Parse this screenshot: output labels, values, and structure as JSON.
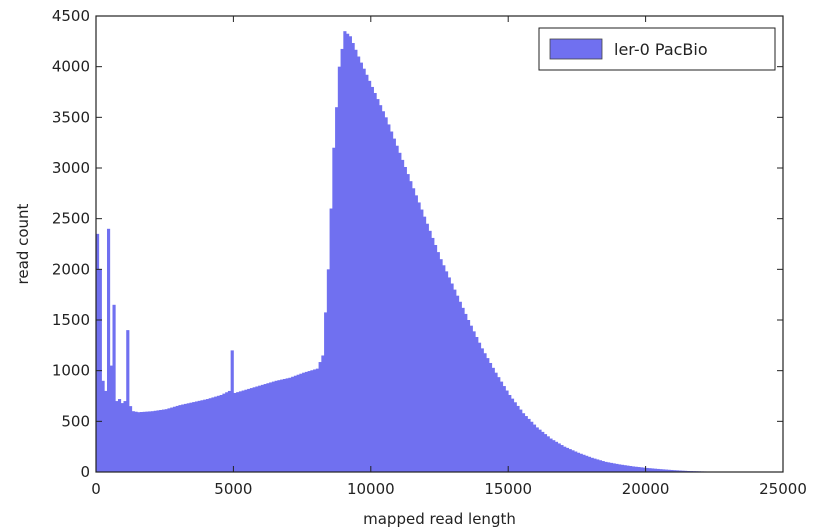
{
  "chart_data": {
    "type": "histogram",
    "title": "",
    "xlabel": "mapped read length",
    "ylabel": "read count",
    "xlim": [
      0,
      25000
    ],
    "ylim": [
      0,
      4500
    ],
    "xticks": [
      "0",
      "5000",
      "10000",
      "15000",
      "20000",
      "25000"
    ],
    "yticks": [
      "0",
      "500",
      "1000",
      "1500",
      "2000",
      "2500",
      "3000",
      "3500",
      "4000",
      "4500"
    ],
    "grid": false,
    "legend_position": "top-right",
    "bin_width": 100,
    "series": [
      {
        "name": "ler-0 PacBio",
        "color": "#7070f0",
        "points": [
          [
            0,
            2350
          ],
          [
            100,
            2000
          ],
          [
            200,
            900
          ],
          [
            300,
            800
          ],
          [
            400,
            2400
          ],
          [
            500,
            1050
          ],
          [
            600,
            1650
          ],
          [
            700,
            700
          ],
          [
            800,
            720
          ],
          [
            900,
            680
          ],
          [
            1000,
            700
          ],
          [
            1100,
            1400
          ],
          [
            1200,
            650
          ],
          [
            1300,
            600
          ],
          [
            1500,
            590
          ],
          [
            2000,
            600
          ],
          [
            2500,
            620
          ],
          [
            3000,
            660
          ],
          [
            3500,
            690
          ],
          [
            4000,
            720
          ],
          [
            4500,
            760
          ],
          [
            4800,
            800
          ],
          [
            4900,
            1200
          ],
          [
            5000,
            780
          ],
          [
            5500,
            820
          ],
          [
            6000,
            860
          ],
          [
            6500,
            900
          ],
          [
            7000,
            930
          ],
          [
            7500,
            980
          ],
          [
            8000,
            1020
          ],
          [
            8200,
            1150
          ],
          [
            8400,
            2000
          ],
          [
            8600,
            3200
          ],
          [
            8800,
            4000
          ],
          [
            9000,
            4350
          ],
          [
            9200,
            4300
          ],
          [
            9500,
            4100
          ],
          [
            10000,
            3800
          ],
          [
            10500,
            3500
          ],
          [
            11000,
            3150
          ],
          [
            11500,
            2800
          ],
          [
            12000,
            2450
          ],
          [
            12500,
            2100
          ],
          [
            13000,
            1800
          ],
          [
            13500,
            1500
          ],
          [
            14000,
            1220
          ],
          [
            14500,
            980
          ],
          [
            15000,
            760
          ],
          [
            15500,
            580
          ],
          [
            16000,
            440
          ],
          [
            16500,
            330
          ],
          [
            17000,
            250
          ],
          [
            17500,
            190
          ],
          [
            18000,
            140
          ],
          [
            18500,
            100
          ],
          [
            19000,
            75
          ],
          [
            19500,
            55
          ],
          [
            20000,
            40
          ],
          [
            20500,
            28
          ],
          [
            21000,
            18
          ],
          [
            21500,
            10
          ],
          [
            22000,
            6
          ],
          [
            22500,
            3
          ],
          [
            23000,
            0
          ]
        ]
      }
    ]
  }
}
